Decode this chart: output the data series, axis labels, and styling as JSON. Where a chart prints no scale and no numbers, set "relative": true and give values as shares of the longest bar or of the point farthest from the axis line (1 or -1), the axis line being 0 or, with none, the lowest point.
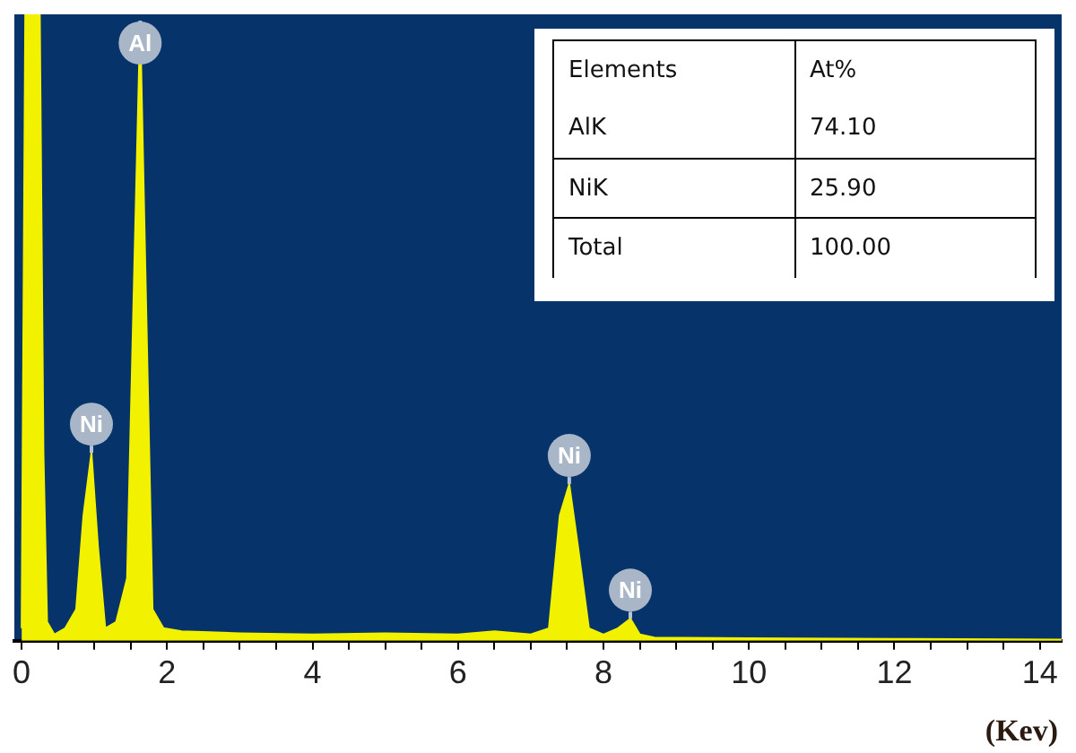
{
  "chart_data": {
    "type": "area",
    "relative": true,
    "xlabel": "(Kev)",
    "xlim": [
      -0.1,
      14.3
    ],
    "xticks": [
      0,
      {
        "value": 0.5,
        "label": null
      },
      {
        "value": 1,
        "label": null
      },
      {
        "value": 1.5,
        "label": null
      },
      2,
      {
        "value": 2.5,
        "label": null
      },
      {
        "value": 3,
        "label": null
      },
      {
        "value": 3.5,
        "label": null
      },
      4,
      {
        "value": 4.5,
        "label": null
      },
      {
        "value": 5,
        "label": null
      },
      {
        "value": 5.5,
        "label": null
      },
      6,
      {
        "value": 6.5,
        "label": null
      },
      {
        "value": 7,
        "label": null
      },
      {
        "value": 7.5,
        "label": null
      },
      8,
      {
        "value": 8.5,
        "label": null
      },
      {
        "value": 9,
        "label": null
      },
      {
        "value": 9.5,
        "label": null
      },
      10,
      {
        "value": 10.5,
        "label": null
      },
      {
        "value": 11,
        "label": null
      },
      {
        "value": 11.5,
        "label": null
      },
      12,
      {
        "value": 12.5,
        "label": null
      },
      {
        "value": 13,
        "label": null
      },
      {
        "value": 13.5,
        "label": null
      },
      14
    ],
    "series": [
      {
        "color": "#f2f200",
        "x": [
          0,
          0.05,
          0.25,
          0.3,
          0.35,
          0.45,
          0.6,
          0.75,
          0.85,
          0.96,
          1.05,
          1.15,
          1.3,
          1.45,
          1.55,
          1.63,
          1.7,
          1.8,
          1.95,
          2.2,
          3,
          4,
          5,
          6,
          6.5,
          7,
          7.25,
          7.4,
          7.53,
          7.65,
          7.8,
          8.0,
          8.2,
          8.37,
          8.5,
          8.7,
          10,
          12,
          14.3
        ],
        "values": [
          0.02,
          1,
          1,
          0.3,
          0.03,
          0.01,
          0.02,
          0.05,
          0.2,
          0.3,
          0.15,
          0.02,
          0.03,
          0.1,
          0.6,
          0.99,
          0.6,
          0.05,
          0.02,
          0.015,
          0.012,
          0.01,
          0.012,
          0.01,
          0.015,
          0.01,
          0.02,
          0.2,
          0.25,
          0.15,
          0.02,
          0.01,
          0.02,
          0.035,
          0.01,
          0.005,
          0.004,
          0.003,
          0.002
        ]
      }
    ],
    "annotations": [
      {
        "text": "Ni",
        "x": 0.96,
        "y": 0.3
      },
      {
        "text": "Al",
        "x": 1.63,
        "y": 0.99
      },
      {
        "text": "Ni",
        "x": 7.53,
        "y": 0.25
      },
      {
        "text": "Ni",
        "x": 8.37,
        "y": 0.035
      },
      "Elements",
      "At%",
      "AlK",
      "74.10",
      "NiK",
      "25.90",
      "Total",
      "100.00"
    ]
  }
}
